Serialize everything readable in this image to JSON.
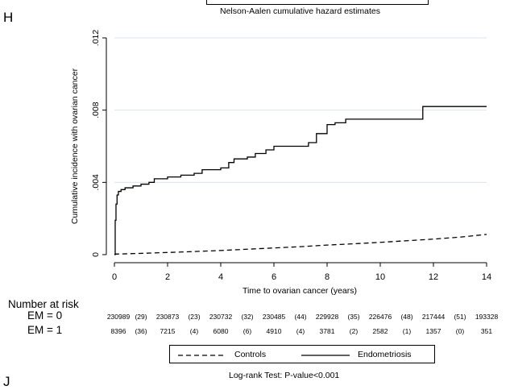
{
  "panel_labels": {
    "top": "H",
    "bottom": "J"
  },
  "top_caption": "Nelson-Aalen cumulative hazard estimates",
  "risk_table": {
    "header": "Number at risk",
    "rows": [
      {
        "label": "EM = 0",
        "values": [
          "230989",
          "(29)",
          "230873",
          "(23)",
          "230732",
          "(32)",
          "230485",
          "(44)",
          "229928",
          "(35)",
          "226476",
          "(48)",
          "217444",
          "(51)",
          "193328"
        ]
      },
      {
        "label": "EM = 1",
        "values": [
          "8396",
          "(36)",
          "7215",
          "(4)",
          "6080",
          "(6)",
          "4910",
          "(4)",
          "3781",
          "(2)",
          "2582",
          "(1)",
          "1357",
          "(0)",
          "351"
        ]
      }
    ]
  },
  "bottom_caption": "Log-rank Test: P-value<0.001",
  "chart_data": {
    "type": "line",
    "xlabel": "Time to ovarian cancer (years)",
    "ylabel": "Cumulative incidence with ovarian cancer",
    "xlim": [
      0,
      14
    ],
    "ylim": [
      0,
      0.012
    ],
    "x_ticks": [
      0,
      2,
      4,
      6,
      8,
      10,
      12,
      14
    ],
    "x_tick_labels": [
      "0",
      "2",
      "4",
      "6",
      "8",
      "10",
      "12",
      "14"
    ],
    "y_ticks": [
      0,
      0.004,
      0.008,
      0.012
    ],
    "y_tick_labels": [
      "0",
      ".004",
      ".008",
      ".012"
    ],
    "grid": true,
    "legend_position": "bottom",
    "series": [
      {
        "name": "Controls",
        "style": "dashed",
        "color": "#000000",
        "x": [
          0,
          0.05,
          1,
          2,
          3,
          4,
          5,
          6,
          7,
          8,
          9,
          10,
          11,
          12,
          13,
          14
        ],
        "y": [
          0,
          3e-05,
          7e-05,
          0.00012,
          0.00017,
          0.00023,
          0.0003,
          0.00037,
          0.00044,
          0.00053,
          0.0006,
          0.00068,
          0.00077,
          0.00086,
          0.00097,
          0.00112
        ]
      },
      {
        "name": "Endometriosis",
        "style": "solid",
        "color": "#000000",
        "x": [
          0,
          0.03,
          0.06,
          0.1,
          0.15,
          0.25,
          0.4,
          0.7,
          1.0,
          1.3,
          1.5,
          2.0,
          2.5,
          3.0,
          3.3,
          4.0,
          4.3,
          4.5,
          5.0,
          5.3,
          5.7,
          6.0,
          7.3,
          7.6,
          8.0,
          8.3,
          8.7,
          11.6,
          14.0
        ],
        "y": [
          0,
          0.0019,
          0.0028,
          0.0033,
          0.0035,
          0.0036,
          0.0037,
          0.0038,
          0.0039,
          0.004,
          0.0042,
          0.0043,
          0.0044,
          0.0045,
          0.0047,
          0.0048,
          0.0051,
          0.0053,
          0.0054,
          0.0056,
          0.0058,
          0.006,
          0.0062,
          0.0067,
          0.0072,
          0.0073,
          0.0075,
          0.0082,
          0.0082
        ]
      }
    ]
  }
}
